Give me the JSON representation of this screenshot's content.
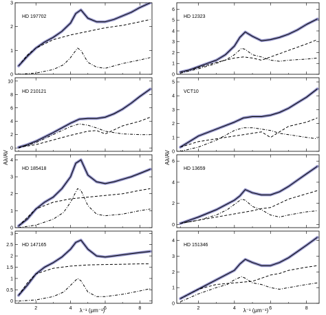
{
  "figure": {
    "ylabel": "Aλ/AV",
    "xlabel": "λ⁻¹ (μm⁻¹)",
    "colors": {
      "fit": "#000000",
      "band": "#6f6fb8",
      "axes": "#000000"
    }
  },
  "chart_data": [
    {
      "type": "line",
      "title": "HD 197702",
      "column": "left",
      "row": 0,
      "xlim": [
        0.8,
        8.7
      ],
      "ylim": [
        0,
        3.0
      ],
      "yticks": [
        0,
        1,
        2,
        3
      ],
      "xticks": [
        2,
        4,
        6,
        8
      ],
      "xtick_labels": false,
      "series": [
        {
          "style": "solid",
          "band": true,
          "x": [
            1.0,
            1.5,
            2.0,
            2.5,
            3.0,
            3.5,
            4.0,
            4.3,
            4.6,
            5.0,
            5.5,
            6.0,
            6.5,
            7.0,
            7.5,
            8.0,
            8.6
          ],
          "y": [
            0.35,
            0.75,
            1.1,
            1.35,
            1.55,
            1.8,
            2.15,
            2.55,
            2.7,
            2.35,
            2.2,
            2.2,
            2.3,
            2.45,
            2.6,
            2.8,
            3.0
          ]
        },
        {
          "style": "dashed",
          "x": [
            1.0,
            1.5,
            2.0,
            3.0,
            4.0,
            5.0,
            6.0,
            7.0,
            8.0,
            8.6
          ],
          "y": [
            0.35,
            0.8,
            1.1,
            1.45,
            1.65,
            1.8,
            1.95,
            2.05,
            2.2,
            2.3
          ]
        },
        {
          "style": "dashdot",
          "x": [
            1.0,
            2.0,
            3.0,
            3.6,
            4.0,
            4.4,
            4.6,
            5.0,
            5.5,
            6.0,
            7.0,
            8.0,
            8.6
          ],
          "y": [
            0.0,
            0.05,
            0.2,
            0.4,
            0.7,
            1.1,
            1.0,
            0.5,
            0.3,
            0.25,
            0.45,
            0.6,
            0.7
          ]
        }
      ]
    },
    {
      "type": "line",
      "title": "HD 210121",
      "column": "left",
      "row": 1,
      "xlim": [
        0.8,
        8.7
      ],
      "ylim": [
        -0.5,
        10.5
      ],
      "yticks": [
        0,
        2,
        4,
        6,
        8,
        10
      ],
      "xticks": [
        2,
        4,
        6,
        8
      ],
      "xtick_labels": false,
      "series": [
        {
          "style": "solid",
          "band": true,
          "x": [
            1.0,
            1.5,
            2.0,
            3.0,
            4.0,
            4.5,
            5.0,
            5.5,
            6.0,
            6.5,
            7.0,
            7.5,
            8.0,
            8.6
          ],
          "y": [
            0.1,
            0.5,
            1.0,
            2.3,
            3.7,
            4.3,
            4.4,
            4.4,
            4.6,
            5.1,
            5.8,
            6.7,
            7.7,
            8.8
          ]
        },
        {
          "style": "dashed",
          "x": [
            1.0,
            2.0,
            3.0,
            4.0,
            5.0,
            5.5,
            6.0,
            6.5,
            7.0,
            8.0,
            8.6
          ],
          "y": [
            0.1,
            0.5,
            1.2,
            1.9,
            2.5,
            2.6,
            2.1,
            2.7,
            3.3,
            4.0,
            4.6
          ]
        },
        {
          "style": "dashdot",
          "x": [
            1.0,
            2.0,
            3.0,
            4.0,
            4.5,
            5.0,
            5.5,
            6.0,
            6.5,
            7.0,
            8.0,
            8.6
          ],
          "y": [
            0.0,
            0.8,
            2.0,
            3.2,
            3.6,
            3.4,
            3.0,
            2.5,
            2.3,
            2.1,
            2.0,
            2.0
          ]
        }
      ]
    },
    {
      "type": "line",
      "title": "HD 185418",
      "column": "left",
      "row": 2,
      "xlim": [
        0.8,
        8.7
      ],
      "ylim": [
        0,
        4.3
      ],
      "yticks": [
        0,
        1,
        2,
        3,
        4
      ],
      "xticks": [
        2,
        4,
        6,
        8
      ],
      "xtick_labels": false,
      "series": [
        {
          "style": "solid",
          "band": true,
          "x": [
            1.0,
            1.5,
            2.0,
            2.5,
            3.0,
            3.5,
            4.0,
            4.3,
            4.6,
            5.0,
            5.5,
            6.0,
            6.5,
            7.0,
            7.5,
            8.0,
            8.6
          ],
          "y": [
            0.1,
            0.5,
            1.1,
            1.5,
            1.8,
            2.3,
            3.0,
            3.8,
            4.0,
            3.1,
            2.7,
            2.6,
            2.7,
            2.85,
            3.0,
            3.2,
            3.45
          ]
        },
        {
          "style": "dashed",
          "x": [
            1.0,
            1.5,
            2.0,
            3.0,
            4.0,
            5.0,
            6.0,
            7.0,
            8.0,
            8.6
          ],
          "y": [
            0.1,
            0.6,
            1.1,
            1.5,
            1.7,
            1.8,
            1.9,
            2.0,
            2.2,
            2.3
          ]
        },
        {
          "style": "dashdot",
          "x": [
            1.0,
            2.0,
            3.0,
            3.6,
            4.0,
            4.4,
            4.6,
            5.0,
            5.5,
            6.0,
            7.0,
            8.0,
            8.6
          ],
          "y": [
            0.0,
            0.15,
            0.5,
            0.9,
            1.5,
            2.3,
            2.2,
            1.3,
            0.8,
            0.7,
            0.8,
            1.0,
            1.1
          ]
        }
      ]
    },
    {
      "type": "line",
      "title": "HD 147165",
      "column": "left",
      "row": 3,
      "xlim": [
        0.8,
        8.7
      ],
      "ylim": [
        -0.1,
        3.1
      ],
      "yticks": [
        0,
        0.5,
        1,
        1.5,
        2,
        2.5,
        3
      ],
      "xticks": [
        2,
        4,
        6,
        8
      ],
      "xtick_labels": true,
      "series": [
        {
          "style": "solid",
          "band": true,
          "x": [
            1.0,
            1.5,
            2.0,
            2.5,
            3.0,
            3.5,
            4.0,
            4.3,
            4.6,
            5.0,
            5.5,
            6.0,
            6.5,
            7.0,
            7.5,
            8.0,
            8.6
          ],
          "y": [
            0.25,
            0.7,
            1.2,
            1.5,
            1.7,
            1.95,
            2.3,
            2.6,
            2.7,
            2.3,
            2.0,
            1.95,
            2.0,
            2.05,
            2.1,
            2.15,
            2.2
          ]
        },
        {
          "style": "dashed",
          "x": [
            1.0,
            1.5,
            2.0,
            3.0,
            4.0,
            5.0,
            6.0,
            7.0,
            8.0,
            8.6
          ],
          "y": [
            0.25,
            0.8,
            1.2,
            1.45,
            1.55,
            1.6,
            1.62,
            1.63,
            1.65,
            1.65
          ]
        },
        {
          "style": "dashdot",
          "x": [
            1.0,
            2.0,
            3.0,
            3.6,
            4.0,
            4.4,
            4.6,
            5.0,
            5.5,
            6.0,
            7.0,
            8.0,
            8.6
          ],
          "y": [
            0.0,
            0.05,
            0.2,
            0.4,
            0.7,
            1.0,
            0.9,
            0.4,
            0.2,
            0.2,
            0.3,
            0.45,
            0.55
          ]
        }
      ]
    },
    {
      "type": "line",
      "title": "HD 12323",
      "column": "right",
      "row": 0,
      "xlim": [
        0.8,
        8.7
      ],
      "ylim": [
        0,
        6.6
      ],
      "yticks": [
        0,
        1,
        2,
        3,
        4,
        5,
        6
      ],
      "xticks": [
        2,
        4,
        6,
        8
      ],
      "xtick_labels": false,
      "series": [
        {
          "style": "solid",
          "band": true,
          "x": [
            1.0,
            1.5,
            2.0,
            2.5,
            3.0,
            3.5,
            4.0,
            4.3,
            4.6,
            5.0,
            5.5,
            6.0,
            6.5,
            7.0,
            7.5,
            8.0,
            8.6
          ],
          "y": [
            0.2,
            0.4,
            0.7,
            1.0,
            1.3,
            1.8,
            2.6,
            3.4,
            3.9,
            3.5,
            3.1,
            3.2,
            3.4,
            3.7,
            4.1,
            4.6,
            5.1
          ]
        },
        {
          "style": "dashed",
          "x": [
            1.0,
            2.0,
            3.0,
            4.0,
            4.5,
            5.0,
            5.5,
            6.0,
            6.5,
            7.0,
            8.0,
            8.6
          ],
          "y": [
            0.2,
            0.6,
            1.1,
            1.5,
            1.6,
            1.5,
            1.3,
            1.6,
            1.9,
            2.2,
            2.8,
            3.2
          ]
        },
        {
          "style": "dashdot",
          "x": [
            1.0,
            2.0,
            3.0,
            3.6,
            4.0,
            4.4,
            4.6,
            5.0,
            5.5,
            6.0,
            6.5,
            7.0,
            8.0,
            8.6
          ],
          "y": [
            0.1,
            0.5,
            1.0,
            1.4,
            1.8,
            2.4,
            2.3,
            1.8,
            1.6,
            1.3,
            1.2,
            1.3,
            1.4,
            1.5
          ]
        }
      ]
    },
    {
      "type": "line",
      "title": "VCT10",
      "column": "right",
      "row": 1,
      "xlim": [
        0.8,
        8.7
      ],
      "ylim": [
        0,
        5.3
      ],
      "yticks": [
        0,
        1,
        2,
        3,
        4,
        5
      ],
      "xticks": [
        2,
        4,
        6,
        8
      ],
      "xtick_labels": false,
      "series": [
        {
          "style": "solid",
          "band": true,
          "x": [
            1.0,
            1.5,
            2.0,
            3.0,
            4.0,
            4.5,
            5.0,
            5.5,
            6.0,
            6.5,
            7.0,
            7.5,
            8.0,
            8.6
          ],
          "y": [
            0.3,
            0.7,
            1.1,
            1.6,
            2.1,
            2.4,
            2.5,
            2.5,
            2.6,
            2.8,
            3.1,
            3.5,
            3.9,
            4.5
          ]
        },
        {
          "style": "dashed",
          "x": [
            1.0,
            2.0,
            3.0,
            4.0,
            4.5,
            5.0,
            5.5,
            6.0,
            6.5,
            7.0,
            8.0,
            8.6
          ],
          "y": [
            0.3,
            0.7,
            0.9,
            1.1,
            1.2,
            1.3,
            1.4,
            1.0,
            1.4,
            1.8,
            2.1,
            2.4
          ]
        },
        {
          "style": "dashdot",
          "x": [
            1.0,
            2.0,
            3.0,
            4.0,
            4.5,
            5.0,
            5.5,
            6.0,
            6.5,
            7.0,
            8.0,
            8.6
          ],
          "y": [
            0.0,
            0.3,
            0.8,
            1.5,
            1.7,
            1.7,
            1.6,
            1.5,
            1.3,
            1.2,
            1.0,
            0.9
          ]
        }
      ]
    },
    {
      "type": "line",
      "title": "HD 13659",
      "column": "right",
      "row": 2,
      "xlim": [
        0.8,
        8.7
      ],
      "ylim": [
        -0.3,
        6.6
      ],
      "yticks": [
        0,
        2,
        4,
        6
      ],
      "xticks": [
        2,
        4,
        6,
        8
      ],
      "xtick_labels": false,
      "series": [
        {
          "style": "solid",
          "band": true,
          "x": [
            1.0,
            1.5,
            2.0,
            3.0,
            4.0,
            4.3,
            4.6,
            5.0,
            5.5,
            6.0,
            6.5,
            7.0,
            7.5,
            8.0,
            8.6
          ],
          "y": [
            0.1,
            0.4,
            0.7,
            1.4,
            2.3,
            2.7,
            3.3,
            3.0,
            2.8,
            2.8,
            3.1,
            3.6,
            4.2,
            4.8,
            5.5
          ]
        },
        {
          "style": "dashed",
          "x": [
            1.0,
            2.0,
            3.0,
            4.0,
            5.0,
            5.5,
            6.0,
            6.5,
            7.0,
            8.0,
            8.6
          ],
          "y": [
            0.1,
            0.4,
            0.7,
            1.0,
            1.3,
            1.5,
            1.6,
            2.0,
            2.4,
            2.9,
            3.2
          ]
        },
        {
          "style": "dashdot",
          "x": [
            1.0,
            2.0,
            3.0,
            3.6,
            4.0,
            4.4,
            4.6,
            5.0,
            5.5,
            6.0,
            6.5,
            7.0,
            8.0,
            8.6
          ],
          "y": [
            0.1,
            0.4,
            0.9,
            1.4,
            1.9,
            2.4,
            2.3,
            1.7,
            1.4,
            0.9,
            0.7,
            0.9,
            1.2,
            1.3
          ]
        }
      ]
    },
    {
      "type": "line",
      "title": "HD 151346",
      "column": "right",
      "row": 3,
      "xlim": [
        0.8,
        8.7
      ],
      "ylim": [
        0,
        4.6
      ],
      "yticks": [
        0,
        1,
        2,
        3,
        4
      ],
      "xticks": [
        2,
        4,
        6,
        8
      ],
      "xtick_labels": true,
      "series": [
        {
          "style": "solid",
          "band": true,
          "x": [
            1.0,
            1.5,
            2.0,
            3.0,
            4.0,
            4.3,
            4.6,
            5.0,
            5.5,
            6.0,
            6.5,
            7.0,
            7.5,
            8.0,
            8.6
          ],
          "y": [
            0.3,
            0.6,
            0.9,
            1.5,
            2.1,
            2.5,
            2.8,
            2.6,
            2.4,
            2.4,
            2.6,
            2.9,
            3.3,
            3.7,
            4.2
          ]
        },
        {
          "style": "dashed",
          "x": [
            1.0,
            2.0,
            3.0,
            4.0,
            5.0,
            5.5,
            6.0,
            6.5,
            7.0,
            8.0,
            8.6
          ],
          "y": [
            0.3,
            0.9,
            1.2,
            1.3,
            1.4,
            1.6,
            1.8,
            1.9,
            2.1,
            2.3,
            2.4
          ]
        },
        {
          "style": "dashdot",
          "x": [
            1.0,
            2.0,
            3.0,
            3.6,
            4.0,
            4.4,
            4.6,
            5.0,
            5.5,
            6.0,
            6.5,
            7.0,
            8.0,
            8.6
          ],
          "y": [
            0.1,
            0.6,
            1.0,
            1.2,
            1.5,
            1.7,
            1.6,
            1.3,
            1.2,
            1.0,
            0.9,
            1.0,
            1.2,
            1.3
          ]
        }
      ]
    }
  ]
}
